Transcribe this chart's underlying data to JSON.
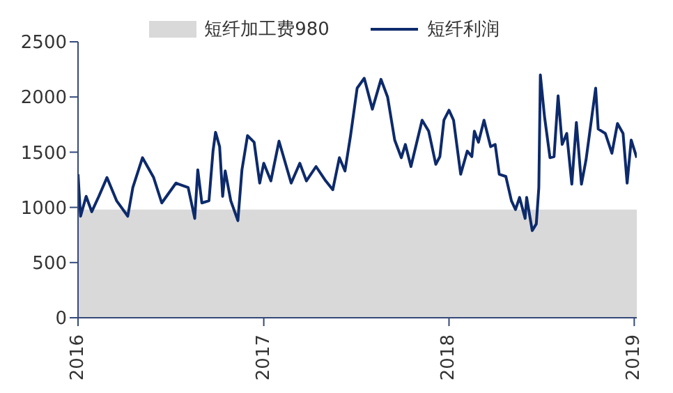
{
  "chart_data": {
    "type": "line",
    "legend": "top",
    "grid": false,
    "marker": "none",
    "line_style": "solid",
    "xlim": [
      "2016-01-01",
      "2019-01-06"
    ],
    "xticks": [
      {
        "value": "2016-01-01",
        "label": "2016"
      },
      {
        "value": "2017-01-01",
        "label": "2017"
      },
      {
        "value": "2018-01-01",
        "label": "2018"
      },
      {
        "value": "2019-01-01",
        "label": "2019"
      }
    ],
    "ylim": [
      0,
      2500
    ],
    "yticks": [
      0,
      500,
      1000,
      1500,
      2000,
      2500
    ],
    "series": [
      {
        "name": "短纤加工费980",
        "type": "area",
        "color": "#d9d9d9",
        "x": [
          "2016-01-01",
          "2019-01-06"
        ],
        "values": [
          980,
          980
        ]
      },
      {
        "name": "短纤利润",
        "color": "#0d2a6b",
        "x": [
          "2016-01-01",
          "2016-01-06",
          "2016-01-17",
          "2016-01-28",
          "2016-02-11",
          "2016-02-27",
          "2016-03-17",
          "2016-04-08",
          "2016-04-18",
          "2016-05-07",
          "2016-05-29",
          "2016-06-14",
          "2016-07-12",
          "2016-08-05",
          "2016-08-18",
          "2016-08-24",
          "2016-09-01",
          "2016-09-15",
          "2016-09-23",
          "2016-09-28",
          "2016-10-06",
          "2016-10-12",
          "2016-10-17",
          "2016-10-28",
          "2016-11-11",
          "2016-11-19",
          "2016-11-30",
          "2016-12-13",
          "2016-12-24",
          "2017-01-01",
          "2017-01-15",
          "2017-01-31",
          "2017-02-24",
          "2017-03-13",
          "2017-03-26",
          "2017-04-14",
          "2017-05-03",
          "2017-05-17",
          "2017-05-30",
          "2017-06-10",
          "2017-06-21",
          "2017-07-04",
          "2017-07-18",
          "2017-08-03",
          "2017-08-20",
          "2017-09-02",
          "2017-09-16",
          "2017-09-29",
          "2017-10-07",
          "2017-10-18",
          "2017-11-09",
          "2017-11-22",
          "2017-12-06",
          "2017-12-14",
          "2017-12-22",
          "2018-01-01",
          "2018-01-10",
          "2018-01-24",
          "2018-02-06",
          "2018-02-15",
          "2018-02-20",
          "2018-02-28",
          "2018-03-11",
          "2018-03-24",
          "2018-04-02",
          "2018-04-10",
          "2018-04-23",
          "2018-05-04",
          "2018-05-12",
          "2018-05-20",
          "2018-05-31",
          "2018-06-03",
          "2018-06-14",
          "2018-06-22",
          "2018-06-27",
          "2018-06-30",
          "2018-07-08",
          "2018-07-19",
          "2018-07-27",
          "2018-08-04",
          "2018-08-12",
          "2018-08-21",
          "2018-08-31",
          "2018-09-09",
          "2018-09-19",
          "2018-09-28",
          "2018-10-17",
          "2018-10-22",
          "2018-11-05",
          "2018-11-18",
          "2018-11-29",
          "2018-12-10",
          "2018-12-18",
          "2018-12-26",
          "2019-01-06"
        ],
        "values": [
          1300,
          920,
          1100,
          960,
          1100,
          1270,
          1060,
          920,
          1180,
          1450,
          1270,
          1040,
          1220,
          1180,
          900,
          1340,
          1040,
          1060,
          1510,
          1680,
          1550,
          1100,
          1330,
          1060,
          880,
          1340,
          1650,
          1590,
          1220,
          1400,
          1240,
          1600,
          1220,
          1400,
          1240,
          1370,
          1240,
          1160,
          1450,
          1330,
          1650,
          2080,
          2170,
          1890,
          2160,
          2000,
          1610,
          1450,
          1570,
          1370,
          1790,
          1690,
          1390,
          1460,
          1790,
          1880,
          1790,
          1300,
          1510,
          1460,
          1690,
          1590,
          1790,
          1550,
          1570,
          1300,
          1280,
          1060,
          980,
          1090,
          900,
          1090,
          790,
          850,
          1180,
          2200,
          1830,
          1450,
          1460,
          2010,
          1570,
          1670,
          1210,
          1770,
          1210,
          1430,
          2080,
          1710,
          1670,
          1490,
          1760,
          1670,
          1220,
          1610,
          1450
        ]
      }
    ]
  }
}
